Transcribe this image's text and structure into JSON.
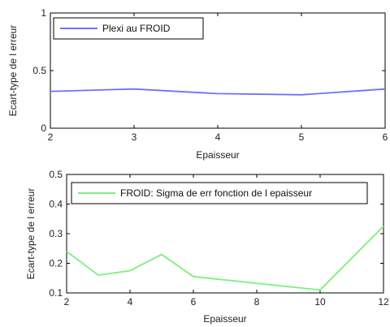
{
  "chart_data": [
    {
      "type": "line",
      "title": "",
      "xlabel": "Epaisseur",
      "ylabel": "Ecart-type de l erreur",
      "xlim": [
        2,
        6
      ],
      "ylim": [
        0,
        1
      ],
      "xticks": [
        2,
        3,
        4,
        5,
        6
      ],
      "xtick_labels": [
        "2",
        "3",
        "4",
        "5",
        "6"
      ],
      "yticks": [
        0,
        0.5,
        1
      ],
      "ytick_labels": [
        "0",
        "0.5",
        "1"
      ],
      "grid": false,
      "legend_position": "top-left",
      "series": [
        {
          "name": "Plexi au FROID",
          "color": "#6f6fff",
          "x": [
            2,
            3,
            4,
            5,
            6
          ],
          "y": [
            0.32,
            0.34,
            0.3,
            0.29,
            0.34
          ]
        }
      ]
    },
    {
      "type": "line",
      "title": "",
      "xlabel": "Epaisseur",
      "ylabel": "Ecart-type de l erreur",
      "xlim": [
        2,
        12
      ],
      "ylim": [
        0.1,
        0.5
      ],
      "xticks": [
        2,
        4,
        6,
        8,
        10,
        12
      ],
      "xtick_labels": [
        "2",
        "4",
        "6",
        "8",
        "10",
        "12"
      ],
      "yticks": [
        0.1,
        0.2,
        0.3,
        0.4,
        0.5
      ],
      "ytick_labels": [
        "0.1",
        "0.2",
        "0.3",
        "0.4",
        "0.5"
      ],
      "grid": false,
      "legend_position": "top",
      "series": [
        {
          "name": "FROID: Sigma de err fonction de l epaisseur",
          "color": "#7cf07c",
          "x": [
            2,
            3,
            4,
            5,
            6,
            10,
            12
          ],
          "y": [
            0.24,
            0.16,
            0.175,
            0.23,
            0.155,
            0.11,
            0.325
          ]
        }
      ]
    }
  ]
}
